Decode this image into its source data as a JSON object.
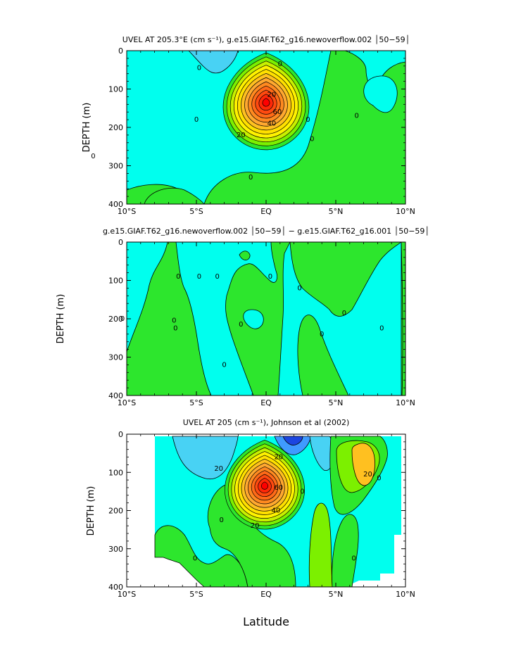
{
  "figure": {
    "xlabel": "Latitude",
    "colors": {
      "deep_blue": "#1c46e0",
      "blue": "#3f9bff",
      "light_blue": "#48d2f4",
      "cyan": "#00ffee",
      "green_cyan": "#22ee66",
      "green": "#2de62d",
      "lime": "#7cf000",
      "yellow": "#fff200",
      "gold": "#ffc020",
      "orange": "#ff8a20",
      "red_orange": "#ff4a10",
      "red": "#ff0000"
    }
  },
  "chart_data": [
    {
      "type": "contour",
      "title": "UVEL AT 205.3°E (cm s⁻¹), g.e15.GIAF.T62_g16.newoverflow.002 │50−59│",
      "ylabel": "DEPTH (m)",
      "xlim": [
        -10,
        10
      ],
      "ylim": [
        400,
        0
      ],
      "x_ticks": [
        "10°S",
        "5°S",
        "EQ",
        "5°N",
        "10°N"
      ],
      "y_ticks": [
        "0",
        "100",
        "200",
        "300",
        "400"
      ],
      "contour_labels": [
        {
          "text": "0",
          "lat": 1.0,
          "depth": 35
        },
        {
          "text": "0",
          "lat": -4.8,
          "depth": 45
        },
        {
          "text": "20",
          "lat": 0.4,
          "depth": 115
        },
        {
          "text": "60",
          "lat": 0.8,
          "depth": 160
        },
        {
          "text": "40",
          "lat": 0.4,
          "depth": 190
        },
        {
          "text": "20",
          "lat": -1.8,
          "depth": 220
        },
        {
          "text": "0",
          "lat": -5.0,
          "depth": 180
        },
        {
          "text": "0",
          "lat": 3.0,
          "depth": 180
        },
        {
          "text": "0",
          "lat": 6.5,
          "depth": 170
        },
        {
          "text": "0",
          "lat": 3.3,
          "depth": 230
        },
        {
          "text": "0",
          "lat": -12.4,
          "depth": 275
        },
        {
          "text": "0",
          "lat": -1.1,
          "depth": 330
        }
      ],
      "fields": {
        "jet": {
          "lat": 0.0,
          "depth": 135,
          "amp": 85,
          "width_deg": 1.4,
          "width_m": 65
        },
        "background_levels": [
          "cyan",
          "green"
        ]
      }
    },
    {
      "type": "contour",
      "title": "g.e15.GIAF.T62_g16.newoverflow.002 │50−59│ − g.e15.GIAF.T62_g16.001 │50−59│",
      "ylabel": "DEPTH (m)",
      "xlim": [
        -10,
        10
      ],
      "ylim": [
        400,
        0
      ],
      "x_ticks": [
        "10°S",
        "5°S",
        "EQ",
        "5°N",
        "10°N"
      ],
      "y_ticks": [
        "0",
        "100",
        "200",
        "300",
        "400"
      ],
      "contour_labels": [
        {
          "text": "0",
          "lat": -6.3,
          "depth": 90
        },
        {
          "text": "0",
          "lat": -4.8,
          "depth": 90
        },
        {
          "text": "0",
          "lat": -3.5,
          "depth": 90
        },
        {
          "text": "0",
          "lat": 0.3,
          "depth": 90
        },
        {
          "text": "0",
          "lat": 2.4,
          "depth": 120
        },
        {
          "text": "0",
          "lat": -10.3,
          "depth": 200
        },
        {
          "text": "0",
          "lat": -6.6,
          "depth": 205
        },
        {
          "text": "0",
          "lat": -1.8,
          "depth": 215
        },
        {
          "text": "0",
          "lat": -6.5,
          "depth": 225
        },
        {
          "text": "0",
          "lat": 4.0,
          "depth": 240
        },
        {
          "text": "0",
          "lat": 5.6,
          "depth": 185
        },
        {
          "text": "0",
          "lat": 8.3,
          "depth": 225
        },
        {
          "text": "0",
          "lat": -3.0,
          "depth": 320
        }
      ],
      "fields": {
        "background_levels": [
          "green",
          "cyan"
        ]
      }
    },
    {
      "type": "contour",
      "title": "UVEL AT 205 (cm s⁻¹), Johnson et al (2002)",
      "ylabel": "DEPTH (m)",
      "xlim": [
        -10,
        10
      ],
      "ylim": [
        400,
        0
      ],
      "x_ticks": [
        "10°S",
        "5°S",
        "EQ",
        "5°N",
        "10°N"
      ],
      "y_ticks": [
        "0",
        "100",
        "200",
        "300",
        "400"
      ],
      "contour_labels": [
        {
          "text": "20",
          "lat": -3.4,
          "depth": 90
        },
        {
          "text": "20",
          "lat": 0.9,
          "depth": 60
        },
        {
          "text": "60",
          "lat": 0.9,
          "depth": 140
        },
        {
          "text": "40",
          "lat": 0.7,
          "depth": 200
        },
        {
          "text": "20",
          "lat": -0.8,
          "depth": 240
        },
        {
          "text": "20",
          "lat": 7.3,
          "depth": 105
        },
        {
          "text": "0",
          "lat": 8.1,
          "depth": 115
        },
        {
          "text": "0",
          "lat": 2.6,
          "depth": 150
        },
        {
          "text": "0",
          "lat": -3.2,
          "depth": 225
        },
        {
          "text": "0",
          "lat": -5.1,
          "depth": 325
        },
        {
          "text": "0",
          "lat": 6.3,
          "depth": 325
        }
      ],
      "fields": {
        "jet": {
          "lat": -0.1,
          "depth": 135,
          "amp": 80,
          "width_deg": 1.3,
          "width_m": 60
        },
        "north_jet": {
          "lat": 7.2,
          "depth": 60,
          "amp": 30
        },
        "westward_core": {
          "lat": 1.8,
          "depth": 20,
          "amp": -30
        },
        "data_extent_lat": [
          -8.0,
          9.8
        ]
      }
    }
  ]
}
